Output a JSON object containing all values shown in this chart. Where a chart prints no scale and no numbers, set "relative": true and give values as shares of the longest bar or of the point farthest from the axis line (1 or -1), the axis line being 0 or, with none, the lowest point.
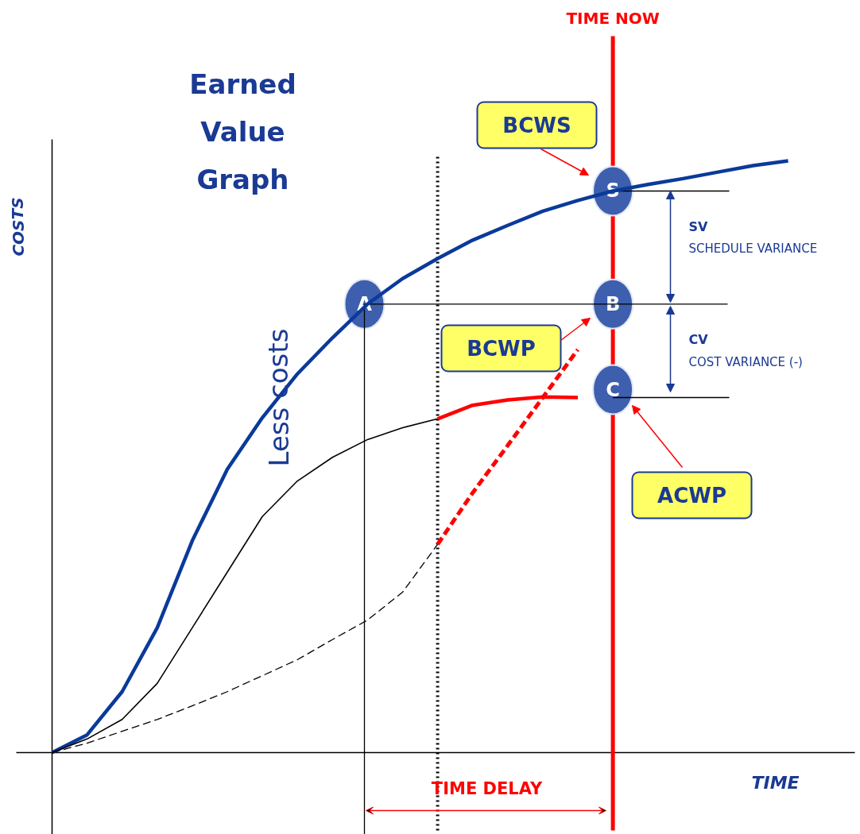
{
  "chart_data": {
    "type": "line",
    "title": "Earned Value Graph",
    "xlabel": "TIME",
    "ylabel": "COSTS",
    "relative": true,
    "grid": false,
    "marker": "none",
    "categories": [
      null,
      null,
      null,
      null,
      null,
      null,
      null,
      null,
      null,
      null,
      null,
      null,
      null,
      null,
      null,
      null,
      null,
      null,
      null,
      null,
      null,
      null
    ],
    "series": [
      {
        "color": "#0a3a9a",
        "line_style": "solid",
        "values": [
          0,
          0.03,
          0.103,
          0.211,
          0.358,
          0.479,
          0.566,
          0.64,
          0.701,
          0.758,
          0.801,
          0.835,
          0.866,
          0.891,
          0.915,
          0.933,
          0.949,
          0.96,
          0.97,
          0.981,
          0.992,
          1
        ]
      },
      {
        "color": "#000000",
        "line_style": "solid",
        "values": [
          0,
          0.023,
          0.056,
          0.117,
          0.211,
          0.305,
          0.399,
          0.459,
          0.499,
          0.529,
          0.549,
          0.564,
          null,
          null,
          null,
          null,
          null,
          null,
          null,
          null,
          null,
          null
        ]
      },
      {
        "color": "#ff0000",
        "line_style": "solid",
        "values": [
          null,
          null,
          null,
          null,
          null,
          null,
          null,
          null,
          null,
          null,
          null,
          0.564,
          0.587,
          0.596,
          0.601,
          0.6,
          null,
          null,
          null,
          null,
          null,
          null
        ]
      },
      {
        "color": "#000000",
        "line_style": "dashed",
        "values": [
          0,
          0.016,
          0.036,
          0.056,
          0.079,
          0.103,
          0.13,
          0.157,
          0.191,
          0.224,
          0.271,
          0.352,
          null,
          null,
          null,
          null,
          null,
          null,
          null,
          null,
          null,
          null
        ]
      },
      {
        "color": "#ff0000",
        "line_style": "dashed",
        "values": [
          null,
          null,
          null,
          null,
          null,
          null,
          null,
          null,
          null,
          null,
          null,
          0.352,
          0.439,
          0.519,
          0.6,
          0.681,
          null,
          null,
          null,
          null,
          null,
          null
        ]
      }
    ],
    "annotations": [
      {
        "text": "A",
        "y": 0.758
      },
      {
        "text": "S",
        "y": 0.949
      },
      "B",
      "C",
      "BCWS",
      "BCWP",
      "ACWP",
      "SV",
      "SCHEDULE VARIANCE",
      "CV",
      "COST VARIANCE (-)",
      "Less costs",
      "TIME DELAY",
      "TIME NOW"
    ]
  }
}
